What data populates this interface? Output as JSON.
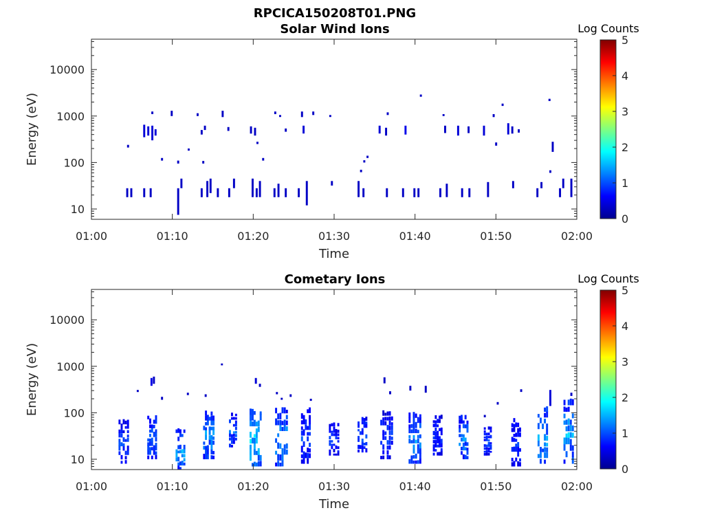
{
  "figure_title": "RPCICA150208T01.PNG",
  "colors": {
    "spectrum": [
      "#00008f",
      "#0000ff",
      "#0080ff",
      "#00ffff",
      "#80ff80",
      "#ffff00",
      "#ff8000",
      "#ff0000",
      "#800000"
    ],
    "axis": "#262626",
    "background": "#ffffff"
  },
  "chart_data": [
    {
      "type": "heatmap",
      "title": "Solar Wind Ions",
      "xlabel": "Time",
      "ylabel": "Energy (eV)",
      "x_ticks": [
        "01:00",
        "01:10",
        "01:20",
        "01:30",
        "01:40",
        "01:50",
        "02:00"
      ],
      "xlim_minutes": [
        0,
        60
      ],
      "y_ticks": [
        "10",
        "100",
        "1000",
        "10000"
      ],
      "ylim_eV": [
        6,
        45000
      ],
      "y_scale": "log",
      "colorbar": {
        "label": "Log Counts",
        "ticks": [
          "0",
          "1",
          "2",
          "3",
          "4",
          "5"
        ],
        "range": [
          0,
          5
        ]
      },
      "cells": [
        [
          4.3,
          18,
          28,
          0.3
        ],
        [
          4.8,
          18,
          28,
          0.3
        ],
        [
          6.4,
          18,
          28,
          0.3
        ],
        [
          7.2,
          18,
          28,
          0.3
        ],
        [
          10.6,
          7.5,
          28,
          0.3
        ],
        [
          11.0,
          28,
          45,
          0.3
        ],
        [
          13.5,
          18,
          28,
          0.3
        ],
        [
          14.2,
          18,
          40,
          0.3
        ],
        [
          14.6,
          22,
          45,
          0.3
        ],
        [
          15.5,
          18,
          28,
          0.3
        ],
        [
          16.9,
          18,
          28,
          0.3
        ],
        [
          17.5,
          28,
          45,
          0.3
        ],
        [
          19.8,
          18,
          45,
          0.3
        ],
        [
          20.3,
          18,
          28,
          0.3
        ],
        [
          20.7,
          18,
          40,
          0.3
        ],
        [
          22.5,
          18,
          28,
          0.3
        ],
        [
          23.0,
          18,
          35,
          0.3
        ],
        [
          23.9,
          18,
          28,
          0.3
        ],
        [
          25.5,
          18,
          28,
          0.3
        ],
        [
          26.5,
          12,
          40,
          0.3
        ],
        [
          29.6,
          32,
          40,
          0.3
        ],
        [
          32.9,
          18,
          40,
          0.3
        ],
        [
          33.5,
          18,
          28,
          0.3
        ],
        [
          36.4,
          18,
          28,
          0.3
        ],
        [
          38.4,
          18,
          28,
          0.3
        ],
        [
          39.8,
          18,
          28,
          0.3
        ],
        [
          40.3,
          18,
          28,
          0.3
        ],
        [
          43.0,
          18,
          28,
          0.3
        ],
        [
          43.8,
          18,
          35,
          0.3
        ],
        [
          45.7,
          18,
          28,
          0.3
        ],
        [
          46.6,
          18,
          28,
          0.3
        ],
        [
          48.9,
          18,
          38,
          0.3
        ],
        [
          52.0,
          28,
          40,
          0.3
        ],
        [
          55.0,
          18,
          28,
          0.3
        ],
        [
          55.5,
          28,
          38,
          0.3
        ],
        [
          57.8,
          18,
          28,
          0.3
        ],
        [
          58.2,
          28,
          45,
          0.3
        ],
        [
          59.2,
          18,
          45,
          0.3
        ],
        [
          6.4,
          350,
          650,
          0.4
        ],
        [
          6.9,
          380,
          600,
          0.4
        ],
        [
          7.4,
          300,
          620,
          0.4
        ],
        [
          7.8,
          380,
          520,
          0.4
        ],
        [
          7.4,
          1100,
          1250,
          0.3
        ],
        [
          9.8,
          1000,
          1300,
          0.3
        ],
        [
          13.0,
          1000,
          1150,
          0.3
        ],
        [
          13.5,
          400,
          500,
          0.3
        ],
        [
          13.9,
          500,
          620,
          0.3
        ],
        [
          16.1,
          950,
          1300,
          0.3
        ],
        [
          16.8,
          480,
          580,
          0.3
        ],
        [
          19.6,
          420,
          600,
          0.3
        ],
        [
          20.1,
          380,
          560,
          0.3
        ],
        [
          22.6,
          1100,
          1250,
          0.3
        ],
        [
          23.2,
          950,
          1050,
          0.3
        ],
        [
          23.9,
          460,
          540,
          0.3
        ],
        [
          25.9,
          950,
          1250,
          0.3
        ],
        [
          26.1,
          420,
          620,
          0.4
        ],
        [
          27.3,
          1050,
          1250,
          0.3
        ],
        [
          29.4,
          950,
          1050,
          0.3
        ],
        [
          35.5,
          420,
          620,
          0.4
        ],
        [
          36.3,
          380,
          560,
          0.3
        ],
        [
          36.5,
          1050,
          1200,
          0.3
        ],
        [
          38.7,
          400,
          620,
          0.5
        ],
        [
          40.6,
          2600,
          2900,
          0.3
        ],
        [
          43.4,
          1000,
          1100,
          0.3
        ],
        [
          43.6,
          430,
          620,
          0.3
        ],
        [
          45.2,
          380,
          620,
          0.4
        ],
        [
          46.5,
          430,
          600,
          0.3
        ],
        [
          48.4,
          380,
          620,
          0.4
        ],
        [
          49.6,
          950,
          1100,
          0.3
        ],
        [
          49.9,
          230,
          270,
          0.3
        ],
        [
          50.7,
          1650,
          1850,
          0.3
        ],
        [
          51.4,
          400,
          700,
          0.4
        ],
        [
          51.9,
          420,
          600,
          0.3
        ],
        [
          52.7,
          440,
          520,
          0.3
        ],
        [
          56.5,
          2100,
          2350,
          0.3
        ],
        [
          56.9,
          170,
          280,
          0.3
        ],
        [
          56.6,
          60,
          68,
          0.3
        ],
        [
          4.4,
          210,
          240,
          0.3
        ],
        [
          8.6,
          110,
          125,
          0.3
        ],
        [
          10.6,
          95,
          110,
          0.3
        ],
        [
          11.9,
          180,
          200,
          0.3
        ],
        [
          13.7,
          95,
          108,
          0.3
        ],
        [
          20.4,
          250,
          280,
          0.3
        ],
        [
          21.1,
          110,
          125,
          0.3
        ],
        [
          33.2,
          62,
          70,
          0.3
        ],
        [
          33.6,
          100,
          112,
          0.3
        ],
        [
          34.0,
          125,
          140,
          0.3
        ]
      ]
    },
    {
      "type": "heatmap",
      "title": "Cometary Ions",
      "xlabel": "Time",
      "ylabel": "Energy (eV)",
      "x_ticks": [
        "01:00",
        "01:10",
        "01:20",
        "01:30",
        "01:40",
        "01:50",
        "02:00"
      ],
      "xlim_minutes": [
        0,
        60
      ],
      "y_ticks": [
        "10",
        "100",
        "1000",
        "10000"
      ],
      "ylim_eV": [
        6,
        45000
      ],
      "y_scale": "log",
      "colorbar": {
        "label": "Log Counts",
        "ticks": [
          "0",
          "1",
          "2",
          "3",
          "4",
          "5"
        ],
        "range": [
          0,
          5
        ]
      },
      "bursts": [
        [
          4.0,
          8,
          70,
          1.3,
          1.0
        ],
        [
          7.5,
          10,
          90,
          1.2,
          1.3
        ],
        [
          11.0,
          6,
          45,
          1.2,
          1.6
        ],
        [
          14.5,
          10,
          110,
          1.4,
          1.5
        ],
        [
          17.5,
          18,
          100,
          1.0,
          1.2
        ],
        [
          20.3,
          7,
          120,
          1.5,
          1.9
        ],
        [
          23.5,
          7,
          130,
          1.6,
          1.5
        ],
        [
          26.5,
          8,
          130,
          1.2,
          1.1
        ],
        [
          30.0,
          12,
          60,
          1.3,
          1.0
        ],
        [
          33.5,
          14,
          80,
          1.2,
          1.2
        ],
        [
          36.5,
          10,
          110,
          1.6,
          1.0
        ],
        [
          40.0,
          8,
          100,
          1.6,
          1.4
        ],
        [
          42.8,
          12,
          90,
          1.2,
          1.0
        ],
        [
          46.0,
          10,
          90,
          1.2,
          1.4
        ],
        [
          49.0,
          12,
          50,
          1.0,
          1.0
        ],
        [
          52.5,
          7,
          80,
          1.2,
          1.0
        ],
        [
          55.8,
          8,
          140,
          1.3,
          1.6
        ],
        [
          59.0,
          8,
          200,
          1.3,
          1.6
        ]
      ],
      "scattered": [
        [
          7.3,
          380,
          560,
          0.5
        ],
        [
          7.6,
          420,
          600,
          0.3
        ],
        [
          5.6,
          280,
          310,
          0.3
        ],
        [
          8.6,
          190,
          220,
          0.3
        ],
        [
          11.8,
          240,
          270,
          0.3
        ],
        [
          14.0,
          220,
          250,
          0.3
        ],
        [
          16.0,
          1050,
          1150,
          0.3
        ],
        [
          20.2,
          420,
          560,
          0.4
        ],
        [
          20.7,
          360,
          420,
          0.3
        ],
        [
          22.8,
          250,
          280,
          0.3
        ],
        [
          23.4,
          190,
          210,
          0.3
        ],
        [
          24.5,
          220,
          250,
          0.3
        ],
        [
          27.0,
          180,
          200,
          0.3
        ],
        [
          36.1,
          430,
          580,
          0.3
        ],
        [
          36.8,
          250,
          290,
          0.3
        ],
        [
          39.3,
          300,
          380,
          0.3
        ],
        [
          41.2,
          270,
          380,
          0.3
        ],
        [
          50.1,
          150,
          170,
          0.3
        ],
        [
          53.0,
          280,
          320,
          0.3
        ],
        [
          56.6,
          140,
          310,
          0.4
        ],
        [
          59.2,
          230,
          270,
          0.3
        ],
        [
          48.5,
          80,
          90,
          0.3
        ]
      ]
    }
  ]
}
